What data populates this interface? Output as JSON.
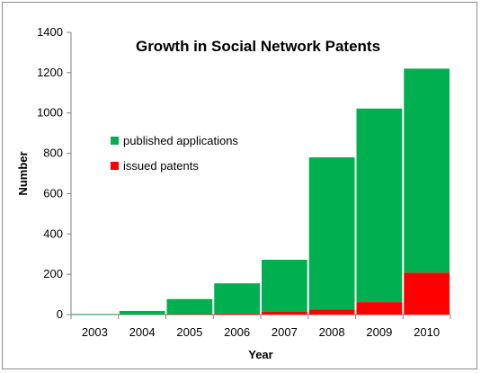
{
  "chart_data": {
    "type": "bar",
    "stacked": true,
    "title": "Growth in Social Network Patents",
    "xlabel": "Year",
    "ylabel": "Number",
    "categories": [
      "2003",
      "2004",
      "2005",
      "2006",
      "2007",
      "2008",
      "2009",
      "2010"
    ],
    "series": [
      {
        "name": "issued patents",
        "color": "#ff0000",
        "values": [
          0,
          0,
          2,
          5,
          15,
          25,
          62,
          208
        ]
      },
      {
        "name": "published applications",
        "color": "#00b050",
        "values": [
          3,
          18,
          75,
          150,
          257,
          755,
          960,
          1012
        ]
      }
    ],
    "ylim": [
      0,
      1400
    ],
    "yticks": [
      0,
      200,
      400,
      600,
      800,
      1000,
      1200,
      1400
    ],
    "legend_order": [
      "published applications",
      "issued patents"
    ],
    "legend_position": "left",
    "grid": false
  }
}
